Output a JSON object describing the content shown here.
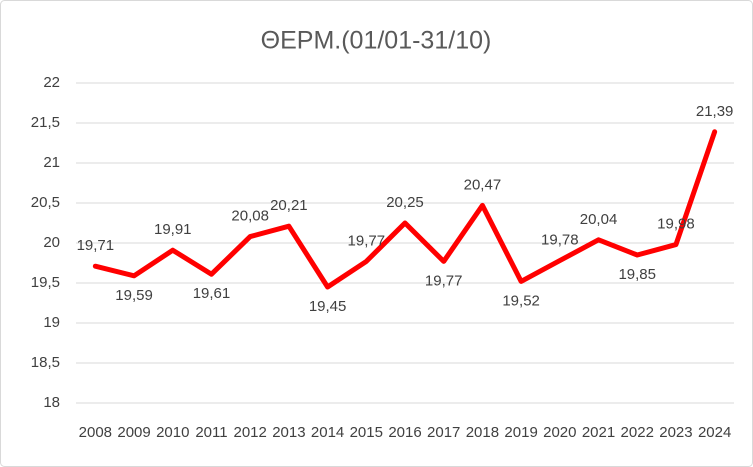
{
  "chart_data": {
    "type": "line",
    "title": "ΘΕΡΜ.(01/01-31/10)",
    "categories": [
      "2008",
      "2009",
      "2010",
      "2011",
      "2012",
      "2013",
      "2014",
      "2015",
      "2016",
      "2017",
      "2018",
      "2019",
      "2020",
      "2021",
      "2022",
      "2023",
      "2024"
    ],
    "series": [
      {
        "name": "ΘΕΡΜ.(01/01-31/10)",
        "color": "#ff0000",
        "values": [
          19.71,
          19.59,
          19.91,
          19.61,
          20.08,
          20.21,
          19.45,
          19.77,
          20.25,
          19.77,
          20.47,
          19.52,
          19.78,
          20.04,
          19.85,
          19.98,
          21.39
        ],
        "value_labels": [
          "19,71",
          "19,59",
          "19,91",
          "19,61",
          "20,08",
          "20,21",
          "19,45",
          "19,77",
          "20,25",
          "19,77",
          "20,47",
          "19,52",
          "19,78",
          "20,04",
          "19,85",
          "19,98",
          "21,39"
        ]
      }
    ],
    "ylim": [
      18,
      22
    ],
    "yticks": [
      18,
      {
        "value": 18.5,
        "label": "18,5"
      },
      19,
      {
        "value": 19.5,
        "label": "19,5"
      },
      20,
      {
        "value": 20.5,
        "label": "20,5"
      },
      21,
      {
        "value": 21.5,
        "label": "21,5"
      },
      22
    ],
    "grid": true
  }
}
